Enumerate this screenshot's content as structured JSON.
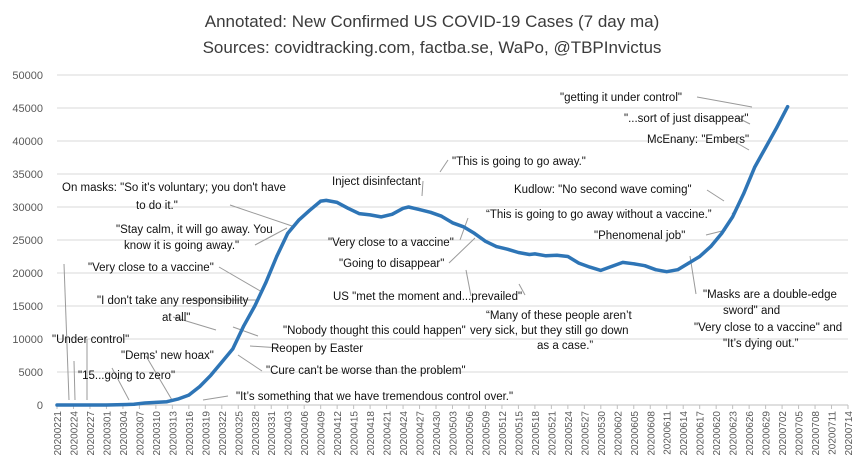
{
  "chart_data": {
    "type": "line",
    "title": "Annotated: New Confirmed US COVID-19 Cases (7 day ma)",
    "subtitle": "Sources: covidtracking.com, factba.se, WaPo, @TBPInvictus",
    "xlabel": "",
    "ylabel": "",
    "ylim": [
      0,
      50000
    ],
    "yticks": [
      0,
      5000,
      10000,
      15000,
      20000,
      25000,
      30000,
      35000,
      40000,
      45000,
      50000
    ],
    "ytick_labels": [
      "0",
      "5000",
      "10000",
      "15000",
      "20000",
      "25000",
      "30000",
      "35000",
      "40000",
      "45000",
      "50000"
    ],
    "xticks": [
      "20200221",
      "20200224",
      "20200227",
      "20200301",
      "20200304",
      "20200307",
      "20200310",
      "20200313",
      "20200316",
      "20200319",
      "20200322",
      "20200325",
      "20200328",
      "20200331",
      "20200403",
      "20200406",
      "20200409",
      "20200412",
      "20200415",
      "20200418",
      "20200421",
      "20200424",
      "20200427",
      "20200430",
      "20200503",
      "20200506",
      "20200509",
      "20200512",
      "20200515",
      "20200518",
      "20200521",
      "20200524",
      "20200527",
      "20200530",
      "20200602",
      "20200605",
      "20200608",
      "20200611",
      "20200614",
      "20200617",
      "20200620",
      "20200623",
      "20200626",
      "20200629",
      "20200702",
      "20200705",
      "20200708",
      "20200711",
      "20200714"
    ],
    "grid": true,
    "series": [
      {
        "color": "#2e75b6",
        "x": [
          "20200221",
          "20200301",
          "20200306",
          "20200308",
          "20200310",
          "20200312",
          "20200314",
          "20200316",
          "20200318",
          "20200320",
          "20200322",
          "20200324",
          "20200326",
          "20200328",
          "20200330",
          "20200401",
          "20200403",
          "20200405",
          "20200407",
          "20200409",
          "20200410",
          "20200412",
          "20200414",
          "20200416",
          "20200418",
          "20200420",
          "20200422",
          "20200424",
          "20200425",
          "20200427",
          "20200429",
          "20200501",
          "20200503",
          "20200505",
          "20200507",
          "20200509",
          "20200511",
          "20200513",
          "20200515",
          "20200517",
          "20200518",
          "20200520",
          "20200522",
          "20200524",
          "20200526",
          "20200528",
          "20200530",
          "20200601",
          "20200603",
          "20200605",
          "20200607",
          "20200609",
          "20200611",
          "20200613",
          "20200615",
          "20200617",
          "20200619",
          "20200621",
          "20200623",
          "20200625",
          "20200627",
          "20200629",
          "20200701",
          "20200703"
        ],
        "values": [
          0,
          0,
          100,
          300,
          400,
          500,
          900,
          1500,
          2800,
          4500,
          6500,
          8500,
          12000,
          15000,
          18500,
          22500,
          26000,
          28000,
          29500,
          30900,
          31000,
          30700,
          29800,
          29000,
          28800,
          28500,
          28900,
          29800,
          30000,
          29600,
          29200,
          28600,
          27600,
          27000,
          26000,
          24800,
          24000,
          23600,
          23100,
          22800,
          22900,
          22600,
          22700,
          22500,
          21500,
          20900,
          20400,
          21000,
          21600,
          21400,
          21100,
          20500,
          20200,
          20500,
          21500,
          22500,
          24000,
          26000,
          28500,
          32000,
          36000,
          39000,
          42000,
          45200
        ]
      }
    ],
    "annotations": [
      {
        "text": "\"getting it under control\""
      },
      {
        "text": "\"...sort of just disappear\""
      },
      {
        "text": "McEnany: \"Embers\""
      },
      {
        "text": "\"This is going to go away.\""
      },
      {
        "text": "Inject disinfectant"
      },
      {
        "text": "On masks: \"So it's voluntary; you don't have"
      },
      {
        "text": "to do it.\""
      },
      {
        "text": "Kudlow: \"No second wave coming\""
      },
      {
        "text": "“This is going to go away without a vaccine.”"
      },
      {
        "text": "\"Stay calm, it will go away. You"
      },
      {
        "text": "know it is going away.\""
      },
      {
        "text": "\"Very close to a vaccine\""
      },
      {
        "text": "\"Phenomenal job\""
      },
      {
        "text": "\"Very close to a vaccine\""
      },
      {
        "text": "\"Going to disappear\""
      },
      {
        "text": "US \"met the moment and...prevailed\""
      },
      {
        "text": "\"I don't take any responsibility"
      },
      {
        "text": "at all\""
      },
      {
        "text": "\"Masks are a double-edge"
      },
      {
        "text": "sword\" and"
      },
      {
        "text": "\"Very close to a vaccine\" and"
      },
      {
        "text": "\"It’s dying out.”"
      },
      {
        "text": "“Many of these people aren’t"
      },
      {
        "text": "very sick, but they still go down"
      },
      {
        "text": "as a case.”"
      },
      {
        "text": "\"Under control\""
      },
      {
        "text": "\"Nobody thought this could happen\""
      },
      {
        "text": "\"Dems' new hoax\""
      },
      {
        "text": "Reopen by Easter"
      },
      {
        "text": "\"15...going to zero\""
      },
      {
        "text": "\"Cure can't be worse than the problem\""
      },
      {
        "text": "\"It’s something that we have tremendous control over.\""
      }
    ]
  }
}
